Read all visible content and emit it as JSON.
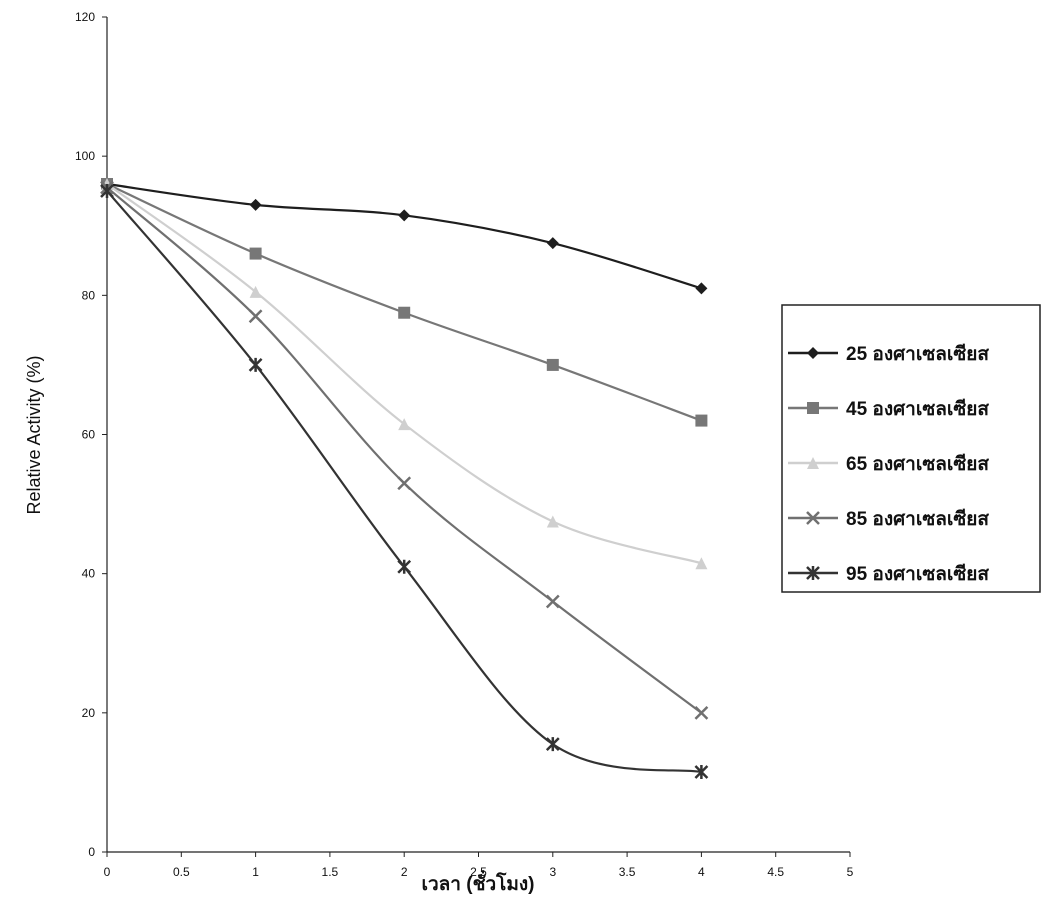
{
  "chart_data": {
    "type": "line",
    "x_label": "เวลา (ชั่วโมง)",
    "y_label": "Relative Activity (%)",
    "xlim": [
      0,
      5
    ],
    "xticks": [
      0,
      0.5,
      1,
      1.5,
      2,
      2.5,
      3,
      3.5,
      4,
      4.5,
      5
    ],
    "ylim": [
      0,
      120
    ],
    "yticks": [
      0,
      20,
      40,
      60,
      80,
      100,
      120
    ],
    "smooth": true,
    "legend": "right",
    "x": [
      0,
      1,
      2,
      3,
      4
    ],
    "series": [
      {
        "name": "25 องศาเซลเซียส",
        "color": "#1e1e1e",
        "marker": "diamond",
        "values": [
          96,
          93,
          91.5,
          87.5,
          81
        ]
      },
      {
        "name": "45 องศาเซลเซียส",
        "color": "#777777",
        "marker": "square",
        "values": [
          96,
          86,
          77.5,
          70,
          62
        ]
      },
      {
        "name": "65 องศาเซลเซียส",
        "color": "#cfcfcf",
        "marker": "triangle",
        "values": [
          96,
          80.5,
          61.5,
          47.5,
          41.5
        ]
      },
      {
        "name": "85 องศาเซลเซียส",
        "color": "#707070",
        "marker": "x",
        "values": [
          95.5,
          77,
          53,
          36,
          20
        ]
      },
      {
        "name": "95 องศาเซลเซียส",
        "color": "#333333",
        "marker": "star",
        "values": [
          95,
          70,
          41,
          15.5,
          11.5
        ]
      }
    ]
  }
}
